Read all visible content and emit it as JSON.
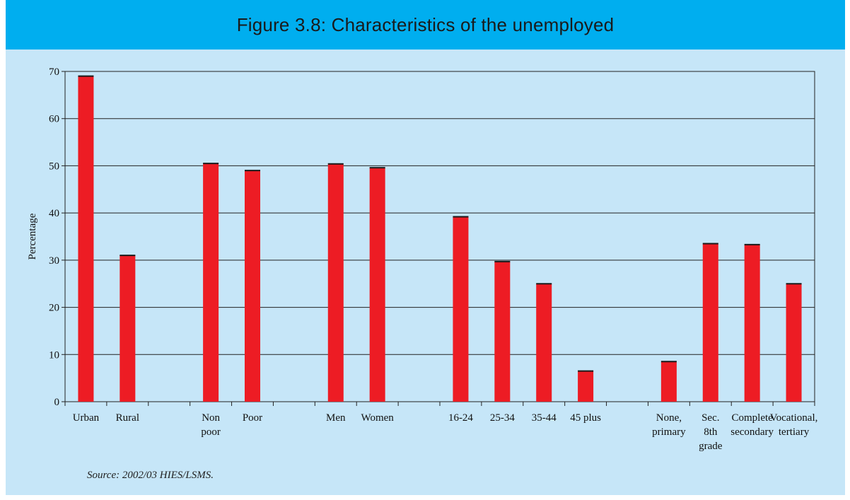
{
  "figure": {
    "title": "Figure 3.8: Characteristics of the unemployed",
    "source": "Source: 2002/03 HIES/LSMS."
  },
  "colors": {
    "background": "#c6e6f8",
    "title_bar": "#00aeef",
    "bar": "#ed1c24",
    "bar_top": "#1a1a1a"
  },
  "chart_data": {
    "type": "bar",
    "ylabel": "Percentage",
    "xlabel": "",
    "ylim": [
      0,
      70
    ],
    "yticks": [
      0,
      10,
      20,
      30,
      40,
      50,
      60,
      70
    ],
    "grid": true,
    "groups": [
      {
        "bars": [
          {
            "label": [
              "Urban"
            ],
            "value": 69
          },
          {
            "label": [
              "Rural"
            ],
            "value": 31
          }
        ]
      },
      {
        "bars": [
          {
            "label": [
              "Non",
              "poor"
            ],
            "value": 50.5
          },
          {
            "label": [
              "Poor"
            ],
            "value": 49
          }
        ]
      },
      {
        "bars": [
          {
            "label": [
              "Men"
            ],
            "value": 50.4
          },
          {
            "label": [
              "Women"
            ],
            "value": 49.6
          }
        ]
      },
      {
        "bars": [
          {
            "label": [
              "16-24"
            ],
            "value": 39.2
          },
          {
            "label": [
              "25-34"
            ],
            "value": 29.7
          },
          {
            "label": [
              "35-44"
            ],
            "value": 25
          },
          {
            "label": [
              "45 plus"
            ],
            "value": 6.5
          }
        ]
      },
      {
        "bars": [
          {
            "label": [
              "None,",
              "primary"
            ],
            "value": 8.5
          },
          {
            "label": [
              "Sec.",
              "8th",
              "grade"
            ],
            "value": 33.5
          },
          {
            "label": [
              "Complete",
              "secondary"
            ],
            "value": 33.3
          },
          {
            "label": [
              "Vocational,",
              "tertiary"
            ],
            "value": 25
          }
        ]
      }
    ]
  }
}
